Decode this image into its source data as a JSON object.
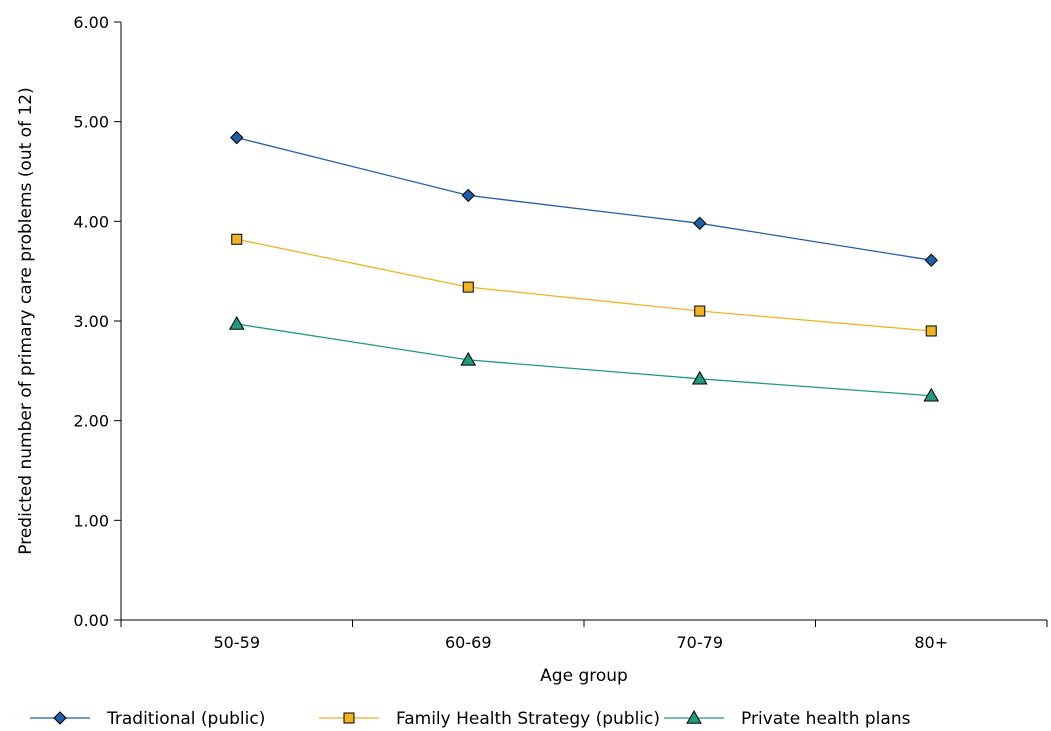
{
  "chart_data": {
    "type": "line",
    "title": "",
    "xlabel": "Age group",
    "ylabel": "Predicted number of primary care problems (out of 12)",
    "categories": [
      "50-59",
      "60-69",
      "70-79",
      "80+"
    ],
    "ylim": [
      0,
      6
    ],
    "yticks": [
      "0.00",
      "1.00",
      "2.00",
      "3.00",
      "4.00",
      "5.00",
      "6.00"
    ],
    "grid": false,
    "legend_position": "bottom",
    "series": [
      {
        "name": "Traditional (public)",
        "values": [
          4.84,
          4.26,
          3.98,
          3.61
        ],
        "color": "#1f5fa8",
        "marker": "diamond"
      },
      {
        "name": "Family Health Strategy (public)",
        "values": [
          3.82,
          3.34,
          3.1,
          2.9
        ],
        "color": "#f0b323",
        "marker": "square"
      },
      {
        "name": "Private health plans",
        "values": [
          2.97,
          2.61,
          2.42,
          2.25
        ],
        "color": "#1f9a7f",
        "marker": "triangle"
      }
    ]
  }
}
